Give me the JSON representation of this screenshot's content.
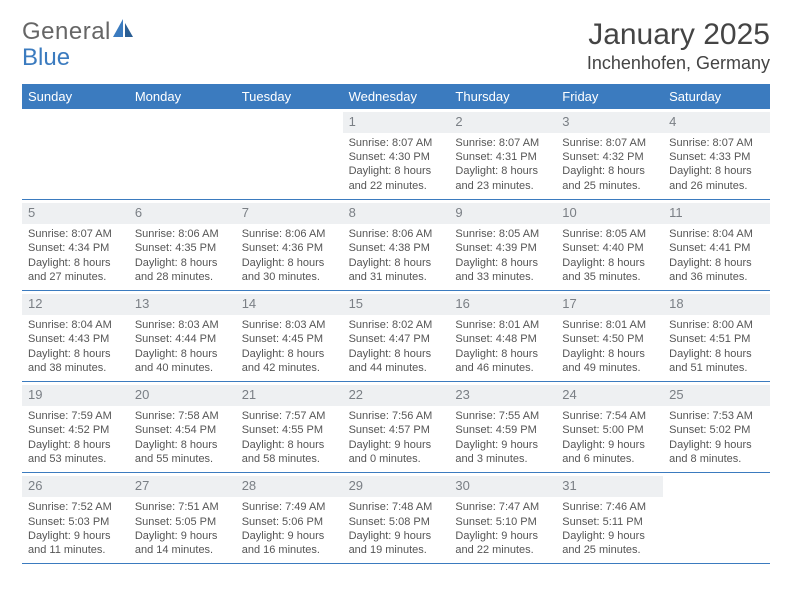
{
  "logo": {
    "text_general": "General",
    "text_blue": "Blue",
    "sail_color": "#3b7bbf",
    "text_color": "#7a7a7a"
  },
  "title": {
    "month": "January 2025",
    "location": "Inchenhofen, Germany"
  },
  "colors": {
    "header_bg": "#3b7bbf",
    "daynum_bg": "#eef0f2",
    "daynum_text": "#7a7f85",
    "cell_text": "#555555",
    "rule": "#3b7bbf"
  },
  "weekdays": [
    "Sunday",
    "Monday",
    "Tuesday",
    "Wednesday",
    "Thursday",
    "Friday",
    "Saturday"
  ],
  "weeks": [
    [
      {
        "blank": true
      },
      {
        "blank": true
      },
      {
        "blank": true
      },
      {
        "day": 1,
        "sunrise": "8:07 AM",
        "sunset": "4:30 PM",
        "daylight_h": 8,
        "daylight_m": 22
      },
      {
        "day": 2,
        "sunrise": "8:07 AM",
        "sunset": "4:31 PM",
        "daylight_h": 8,
        "daylight_m": 23
      },
      {
        "day": 3,
        "sunrise": "8:07 AM",
        "sunset": "4:32 PM",
        "daylight_h": 8,
        "daylight_m": 25
      },
      {
        "day": 4,
        "sunrise": "8:07 AM",
        "sunset": "4:33 PM",
        "daylight_h": 8,
        "daylight_m": 26
      }
    ],
    [
      {
        "day": 5,
        "sunrise": "8:07 AM",
        "sunset": "4:34 PM",
        "daylight_h": 8,
        "daylight_m": 27
      },
      {
        "day": 6,
        "sunrise": "8:06 AM",
        "sunset": "4:35 PM",
        "daylight_h": 8,
        "daylight_m": 28
      },
      {
        "day": 7,
        "sunrise": "8:06 AM",
        "sunset": "4:36 PM",
        "daylight_h": 8,
        "daylight_m": 30
      },
      {
        "day": 8,
        "sunrise": "8:06 AM",
        "sunset": "4:38 PM",
        "daylight_h": 8,
        "daylight_m": 31
      },
      {
        "day": 9,
        "sunrise": "8:05 AM",
        "sunset": "4:39 PM",
        "daylight_h": 8,
        "daylight_m": 33
      },
      {
        "day": 10,
        "sunrise": "8:05 AM",
        "sunset": "4:40 PM",
        "daylight_h": 8,
        "daylight_m": 35
      },
      {
        "day": 11,
        "sunrise": "8:04 AM",
        "sunset": "4:41 PM",
        "daylight_h": 8,
        "daylight_m": 36
      }
    ],
    [
      {
        "day": 12,
        "sunrise": "8:04 AM",
        "sunset": "4:43 PM",
        "daylight_h": 8,
        "daylight_m": 38
      },
      {
        "day": 13,
        "sunrise": "8:03 AM",
        "sunset": "4:44 PM",
        "daylight_h": 8,
        "daylight_m": 40
      },
      {
        "day": 14,
        "sunrise": "8:03 AM",
        "sunset": "4:45 PM",
        "daylight_h": 8,
        "daylight_m": 42
      },
      {
        "day": 15,
        "sunrise": "8:02 AM",
        "sunset": "4:47 PM",
        "daylight_h": 8,
        "daylight_m": 44
      },
      {
        "day": 16,
        "sunrise": "8:01 AM",
        "sunset": "4:48 PM",
        "daylight_h": 8,
        "daylight_m": 46
      },
      {
        "day": 17,
        "sunrise": "8:01 AM",
        "sunset": "4:50 PM",
        "daylight_h": 8,
        "daylight_m": 49
      },
      {
        "day": 18,
        "sunrise": "8:00 AM",
        "sunset": "4:51 PM",
        "daylight_h": 8,
        "daylight_m": 51
      }
    ],
    [
      {
        "day": 19,
        "sunrise": "7:59 AM",
        "sunset": "4:52 PM",
        "daylight_h": 8,
        "daylight_m": 53
      },
      {
        "day": 20,
        "sunrise": "7:58 AM",
        "sunset": "4:54 PM",
        "daylight_h": 8,
        "daylight_m": 55
      },
      {
        "day": 21,
        "sunrise": "7:57 AM",
        "sunset": "4:55 PM",
        "daylight_h": 8,
        "daylight_m": 58
      },
      {
        "day": 22,
        "sunrise": "7:56 AM",
        "sunset": "4:57 PM",
        "daylight_h": 9,
        "daylight_m": 0
      },
      {
        "day": 23,
        "sunrise": "7:55 AM",
        "sunset": "4:59 PM",
        "daylight_h": 9,
        "daylight_m": 3
      },
      {
        "day": 24,
        "sunrise": "7:54 AM",
        "sunset": "5:00 PM",
        "daylight_h": 9,
        "daylight_m": 6
      },
      {
        "day": 25,
        "sunrise": "7:53 AM",
        "sunset": "5:02 PM",
        "daylight_h": 9,
        "daylight_m": 8
      }
    ],
    [
      {
        "day": 26,
        "sunrise": "7:52 AM",
        "sunset": "5:03 PM",
        "daylight_h": 9,
        "daylight_m": 11
      },
      {
        "day": 27,
        "sunrise": "7:51 AM",
        "sunset": "5:05 PM",
        "daylight_h": 9,
        "daylight_m": 14
      },
      {
        "day": 28,
        "sunrise": "7:49 AM",
        "sunset": "5:06 PM",
        "daylight_h": 9,
        "daylight_m": 16
      },
      {
        "day": 29,
        "sunrise": "7:48 AM",
        "sunset": "5:08 PM",
        "daylight_h": 9,
        "daylight_m": 19
      },
      {
        "day": 30,
        "sunrise": "7:47 AM",
        "sunset": "5:10 PM",
        "daylight_h": 9,
        "daylight_m": 22
      },
      {
        "day": 31,
        "sunrise": "7:46 AM",
        "sunset": "5:11 PM",
        "daylight_h": 9,
        "daylight_m": 25
      },
      {
        "blank": true
      }
    ]
  ]
}
